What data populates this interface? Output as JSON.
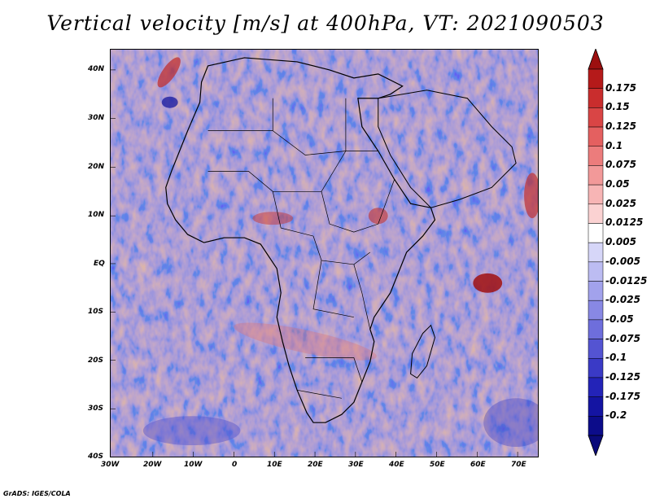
{
  "title": "Vertical velocity [m/s] at 400hPa, VT: 2021090503",
  "credit": "GrADS: IGES/COLA",
  "map": {
    "region": "Africa",
    "lat_labels": [
      "40N",
      "30N",
      "20N",
      "10N",
      "EQ",
      "10S",
      "20S",
      "30S",
      "40S"
    ],
    "lon_labels": [
      "30W",
      "20W",
      "10W",
      "0",
      "10E",
      "20E",
      "30E",
      "40E",
      "50E",
      "60E",
      "70E"
    ]
  },
  "colorbar": {
    "labels": [
      "0.175",
      "0.15",
      "0.125",
      "0.1",
      "0.075",
      "0.05",
      "0.025",
      "0.0125",
      "0.005",
      "-0.005",
      "-0.0125",
      "-0.025",
      "-0.05",
      "-0.075",
      "-0.1",
      "-0.125",
      "-0.175",
      "-0.2"
    ],
    "colors": [
      "#b51a1a",
      "#c92d2d",
      "#d94545",
      "#e46060",
      "#ec7c7c",
      "#f29999",
      "#f7b5b5",
      "#fbd2d2",
      "#ffffff",
      "#d6d6f8",
      "#bcbcf2",
      "#a2a2ec",
      "#8888e4",
      "#6e6edc",
      "#5454d2",
      "#3a3ac6",
      "#2323b8",
      "#1414a2",
      "#0c0c8a"
    ],
    "top_color": "#9c0f0f",
    "bottom_color": "#0a0a7a"
  }
}
